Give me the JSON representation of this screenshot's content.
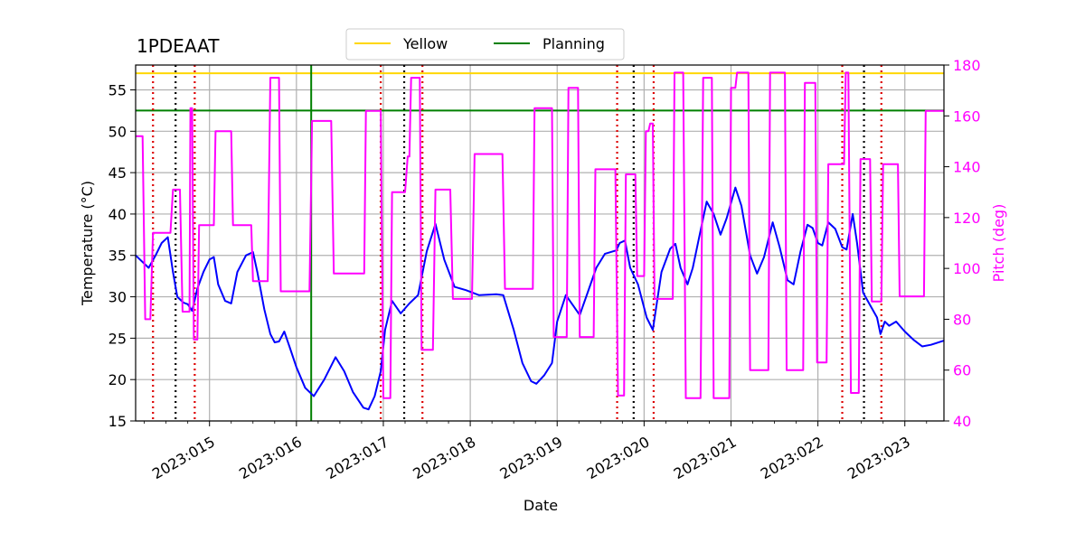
{
  "chart_data": {
    "type": "line",
    "title": "1PDEAAT",
    "xlabel": "Date",
    "ylabel_left": "Temperature ($^\\circ$C)",
    "ylabel_left_display": "Temperature (°C)",
    "ylabel_right": "Pitch (deg)",
    "xlim": [
      14.15,
      23.45
    ],
    "ylim_left": [
      15,
      58
    ],
    "ylim_right": [
      40,
      180
    ],
    "x_ticks": [
      {
        "value": 15,
        "label": "2023:015"
      },
      {
        "value": 16,
        "label": "2023:016"
      },
      {
        "value": 17,
        "label": "2023:017"
      },
      {
        "value": 18,
        "label": "2023:018"
      },
      {
        "value": 19,
        "label": "2023:019"
      },
      {
        "value": 20,
        "label": "2023:020"
      },
      {
        "value": 21,
        "label": "2023:021"
      },
      {
        "value": 22,
        "label": "2023:022"
      },
      {
        "value": 23,
        "label": "2023:023"
      }
    ],
    "y_ticks_left": [
      "15",
      "20",
      "25",
      "30",
      "35",
      "40",
      "45",
      "50",
      "55"
    ],
    "y_ticks_right": [
      "40",
      "60",
      "80",
      "100",
      "120",
      "140",
      "160",
      "180"
    ],
    "legend": [
      {
        "label": "Yellow",
        "color": "#ffd700"
      },
      {
        "label": "Planning",
        "color": "#008000"
      }
    ],
    "limits": {
      "yellow": 57.0,
      "planning": 52.5
    },
    "planning_vline_x": 16.17,
    "red_dotted_x": [
      14.35,
      14.83,
      16.97,
      17.45,
      19.69,
      20.11,
      22.28,
      22.73
    ],
    "black_dotted_x": [
      14.61,
      17.24,
      19.88,
      22.53
    ],
    "series": [
      {
        "name": "Temperature",
        "axis": "left",
        "color": "#0000ff",
        "points": [
          [
            14.15,
            35.0
          ],
          [
            14.3,
            33.5
          ],
          [
            14.38,
            35.0
          ],
          [
            14.45,
            36.5
          ],
          [
            14.52,
            37.2
          ],
          [
            14.58,
            33.0
          ],
          [
            14.63,
            30.0
          ],
          [
            14.7,
            29.3
          ],
          [
            14.75,
            29.1
          ],
          [
            14.8,
            28.3
          ],
          [
            14.86,
            31.0
          ],
          [
            14.93,
            33.0
          ],
          [
            15.0,
            34.5
          ],
          [
            15.05,
            34.8
          ],
          [
            15.1,
            31.5
          ],
          [
            15.18,
            29.5
          ],
          [
            15.25,
            29.2
          ],
          [
            15.32,
            33.0
          ],
          [
            15.42,
            35.0
          ],
          [
            15.5,
            35.4
          ],
          [
            15.55,
            33.0
          ],
          [
            15.63,
            28.5
          ],
          [
            15.7,
            25.5
          ],
          [
            15.75,
            24.5
          ],
          [
            15.8,
            24.6
          ],
          [
            15.86,
            25.8
          ],
          [
            15.92,
            24.0
          ],
          [
            16.0,
            21.5
          ],
          [
            16.1,
            19.0
          ],
          [
            16.2,
            18.0
          ],
          [
            16.32,
            20.0
          ],
          [
            16.45,
            22.7
          ],
          [
            16.55,
            21.0
          ],
          [
            16.65,
            18.5
          ],
          [
            16.77,
            16.6
          ],
          [
            16.83,
            16.4
          ],
          [
            16.9,
            18.0
          ],
          [
            16.97,
            21.0
          ],
          [
            17.02,
            26.0
          ],
          [
            17.1,
            29.5
          ],
          [
            17.2,
            28.0
          ],
          [
            17.3,
            29.2
          ],
          [
            17.4,
            30.2
          ],
          [
            17.5,
            35.5
          ],
          [
            17.6,
            38.8
          ],
          [
            17.7,
            34.5
          ],
          [
            17.82,
            31.2
          ],
          [
            17.95,
            30.8
          ],
          [
            18.1,
            30.2
          ],
          [
            18.3,
            30.3
          ],
          [
            18.38,
            30.2
          ],
          [
            18.5,
            26.0
          ],
          [
            18.6,
            22.0
          ],
          [
            18.7,
            19.8
          ],
          [
            18.76,
            19.5
          ],
          [
            18.85,
            20.5
          ],
          [
            18.94,
            22.0
          ],
          [
            19.0,
            27.0
          ],
          [
            19.1,
            30.2
          ],
          [
            19.18,
            29.0
          ],
          [
            19.26,
            27.8
          ],
          [
            19.35,
            30.5
          ],
          [
            19.45,
            33.5
          ],
          [
            19.55,
            35.2
          ],
          [
            19.68,
            35.6
          ],
          [
            19.72,
            36.5
          ],
          [
            19.78,
            36.8
          ],
          [
            19.84,
            33.5
          ],
          [
            19.93,
            31.5
          ],
          [
            20.03,
            27.5
          ],
          [
            20.1,
            26.0
          ],
          [
            20.2,
            33.0
          ],
          [
            20.3,
            35.8
          ],
          [
            20.36,
            36.4
          ],
          [
            20.42,
            33.5
          ],
          [
            20.5,
            31.5
          ],
          [
            20.56,
            33.5
          ],
          [
            20.65,
            38.0
          ],
          [
            20.72,
            41.5
          ],
          [
            20.8,
            40.0
          ],
          [
            20.88,
            37.5
          ],
          [
            20.95,
            39.5
          ],
          [
            21.05,
            43.2
          ],
          [
            21.12,
            41.0
          ],
          [
            21.22,
            35.0
          ],
          [
            21.3,
            32.8
          ],
          [
            21.38,
            34.8
          ],
          [
            21.48,
            39.0
          ],
          [
            21.56,
            36.0
          ],
          [
            21.65,
            32.0
          ],
          [
            21.72,
            31.5
          ],
          [
            21.8,
            35.5
          ],
          [
            21.88,
            38.7
          ],
          [
            21.94,
            38.3
          ],
          [
            22.0,
            36.5
          ],
          [
            22.05,
            36.2
          ],
          [
            22.12,
            39.0
          ],
          [
            22.2,
            38.2
          ],
          [
            22.28,
            36.0
          ],
          [
            22.33,
            35.7
          ],
          [
            22.4,
            40.0
          ],
          [
            22.45,
            36.5
          ],
          [
            22.52,
            30.5
          ],
          [
            22.6,
            29.0
          ],
          [
            22.68,
            27.5
          ],
          [
            22.72,
            25.5
          ],
          [
            22.77,
            27.0
          ],
          [
            22.82,
            26.5
          ],
          [
            22.9,
            27.0
          ],
          [
            23.0,
            25.8
          ],
          [
            23.1,
            24.8
          ],
          [
            23.2,
            24.0
          ],
          [
            23.3,
            24.2
          ],
          [
            23.45,
            24.7
          ]
        ]
      },
      {
        "name": "Pitch",
        "axis": "right",
        "color": "#ff00ff",
        "points": [
          [
            14.15,
            152
          ],
          [
            14.23,
            152
          ],
          [
            14.26,
            80
          ],
          [
            14.32,
            80
          ],
          [
            14.35,
            114
          ],
          [
            14.55,
            114
          ],
          [
            14.58,
            131
          ],
          [
            14.66,
            131
          ],
          [
            14.69,
            83
          ],
          [
            14.77,
            83
          ],
          [
            14.78,
            163
          ],
          [
            14.8,
            163
          ],
          [
            14.82,
            72
          ],
          [
            14.86,
            72
          ],
          [
            14.88,
            117
          ],
          [
            15.05,
            117
          ],
          [
            15.07,
            154
          ],
          [
            15.25,
            154
          ],
          [
            15.27,
            117
          ],
          [
            15.48,
            117
          ],
          [
            15.5,
            95
          ],
          [
            15.67,
            95
          ],
          [
            15.7,
            175
          ],
          [
            15.8,
            175
          ],
          [
            15.82,
            91
          ],
          [
            16.15,
            91
          ],
          [
            16.17,
            135
          ],
          [
            16.18,
            158
          ],
          [
            16.4,
            158
          ],
          [
            16.43,
            98
          ],
          [
            16.78,
            98
          ],
          [
            16.8,
            162
          ],
          [
            16.97,
            162
          ],
          [
            17.0,
            49
          ],
          [
            17.08,
            49
          ],
          [
            17.1,
            130
          ],
          [
            17.25,
            130
          ],
          [
            17.28,
            144
          ],
          [
            17.3,
            144
          ],
          [
            17.32,
            175
          ],
          [
            17.42,
            175
          ],
          [
            17.44,
            68
          ],
          [
            17.57,
            68
          ],
          [
            17.6,
            131
          ],
          [
            17.77,
            131
          ],
          [
            17.8,
            88
          ],
          [
            18.02,
            88
          ],
          [
            18.05,
            145
          ],
          [
            18.37,
            145
          ],
          [
            18.4,
            92
          ],
          [
            18.72,
            92
          ],
          [
            18.74,
            163
          ],
          [
            18.94,
            163
          ],
          [
            18.96,
            73
          ],
          [
            19.11,
            73
          ],
          [
            19.13,
            171
          ],
          [
            19.24,
            171
          ],
          [
            19.26,
            73
          ],
          [
            19.42,
            73
          ],
          [
            19.44,
            139
          ],
          [
            19.67,
            139
          ],
          [
            19.7,
            50
          ],
          [
            19.77,
            50
          ],
          [
            19.79,
            137
          ],
          [
            19.9,
            137
          ],
          [
            19.92,
            97
          ],
          [
            20.0,
            97
          ],
          [
            20.02,
            154
          ],
          [
            20.05,
            154
          ],
          [
            20.07,
            157
          ],
          [
            20.1,
            157
          ],
          [
            20.12,
            88
          ],
          [
            20.33,
            88
          ],
          [
            20.35,
            177
          ],
          [
            20.45,
            177
          ],
          [
            20.48,
            49
          ],
          [
            20.65,
            49
          ],
          [
            20.68,
            175
          ],
          [
            20.78,
            175
          ],
          [
            20.8,
            49
          ],
          [
            20.98,
            49
          ],
          [
            21.0,
            171
          ],
          [
            21.05,
            171
          ],
          [
            21.07,
            177
          ],
          [
            21.2,
            177
          ],
          [
            21.22,
            60
          ],
          [
            21.43,
            60
          ],
          [
            21.45,
            177
          ],
          [
            21.62,
            177
          ],
          [
            21.64,
            60
          ],
          [
            21.83,
            60
          ],
          [
            21.85,
            173
          ],
          [
            21.97,
            173
          ],
          [
            21.99,
            63
          ],
          [
            22.1,
            63
          ],
          [
            22.12,
            141
          ],
          [
            22.3,
            141
          ],
          [
            22.32,
            177
          ],
          [
            22.35,
            177
          ],
          [
            22.38,
            51
          ],
          [
            22.47,
            51
          ],
          [
            22.49,
            143
          ],
          [
            22.6,
            143
          ],
          [
            22.62,
            87
          ],
          [
            22.73,
            87
          ],
          [
            22.75,
            141
          ],
          [
            22.92,
            141
          ],
          [
            22.94,
            89
          ],
          [
            23.22,
            89
          ],
          [
            23.24,
            162
          ],
          [
            23.45,
            162
          ]
        ]
      }
    ]
  }
}
